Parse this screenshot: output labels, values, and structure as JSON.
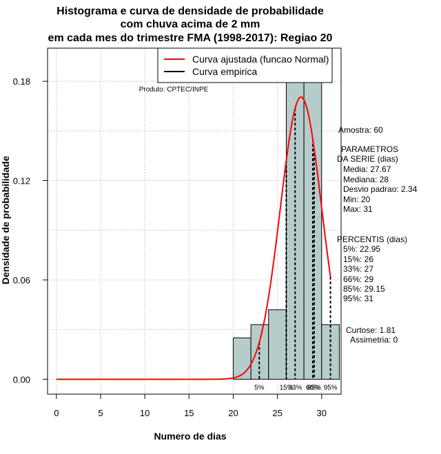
{
  "chart_data": {
    "type": "bar",
    "title_lines": [
      "Histograma e curva de densidade de probabilidade",
      "com chuva acima de 2 mm",
      "em cada mes do trimestre FMA (1998-2017): Regiao 20"
    ],
    "xlabel": "Numero de dias",
    "ylabel": "Densidade de probabilidade",
    "xlim": [
      -1,
      32.2
    ],
    "ylim": [
      -0.009,
      0.2
    ],
    "x_ticks": [
      0,
      5,
      10,
      15,
      20,
      25,
      30
    ],
    "y_ticks": [
      0.0,
      0.06,
      0.12,
      0.18
    ],
    "y_tick_labels": [
      "0.00",
      "0.06",
      "0.12",
      "0.18"
    ],
    "grid": true,
    "bar_color": "#b5cccb",
    "curve_color": "#ff0000",
    "bins": [
      {
        "from": 20,
        "to": 22,
        "density": 0.025
      },
      {
        "from": 22,
        "to": 24,
        "density": 0.033
      },
      {
        "from": 24,
        "to": 26,
        "density": 0.042
      },
      {
        "from": 26,
        "to": 28,
        "density": 0.183
      },
      {
        "from": 28,
        "to": 30,
        "density": 0.183
      },
      {
        "from": 30,
        "to": 32,
        "density": 0.033
      }
    ],
    "normal_fit": {
      "mean": 27.67,
      "sd": 2.34,
      "x_from": 0,
      "x_to": 31
    },
    "percentile_lines": [
      {
        "label": "5%",
        "x": 22.95
      },
      {
        "label": "15%",
        "x": 26
      },
      {
        "label": "33%",
        "x": 27
      },
      {
        "label": "66%",
        "x": 29
      },
      {
        "label": "85%",
        "x": 29.15
      },
      {
        "label": "95%",
        "x": 31
      }
    ],
    "legend": {
      "position": "top-right",
      "items": [
        {
          "label": "Curva ajustada (funcao Normal)",
          "color": "#ff0000"
        },
        {
          "label": "Curva empirica",
          "color": "#000000"
        }
      ]
    },
    "product_note": "Produto: CPTEC/INPE"
  },
  "side_panel": {
    "sample": "Amostra: 60",
    "params_title_1": "PARAMETROS",
    "params_title_2": "DA SERIE (dias)",
    "params": [
      "Media: 27.67",
      "Mediana: 28",
      "Desvio padrao: 2.34",
      "Min: 20",
      "Max: 31"
    ],
    "percentis_title": "PERCENTIS (dias)",
    "percentis": [
      "5%: 22.95",
      "15%: 26",
      "33%: 27",
      "66%: 29",
      "85%: 29.15",
      "95%: 31"
    ],
    "curtose": "Curtose: 1.81",
    "assimetria": "Assimetria: 0"
  }
}
